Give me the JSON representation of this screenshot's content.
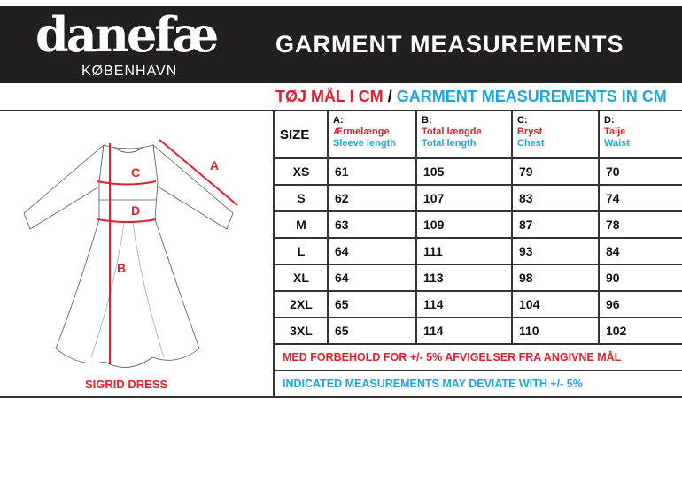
{
  "brand": {
    "logo": "danefæ",
    "city": "KØBENHAVN"
  },
  "header": {
    "title": "GARMENT MEASUREMENTS"
  },
  "subtitle": {
    "danish": "TØJ MÅL I CM",
    "sep": "/",
    "english": "GARMENT MEASUREMENTS IN CM"
  },
  "garment": {
    "name": "SIGRID DRESS",
    "markers": [
      "A",
      "B",
      "C",
      "D"
    ],
    "accent": "#e0202e"
  },
  "table": {
    "size_header": "SIZE",
    "columns": [
      {
        "key": "A:",
        "da": "Ærmelænge",
        "en": "Sleeve length"
      },
      {
        "key": "B:",
        "da": "Total længde",
        "en": "Total length"
      },
      {
        "key": "C:",
        "da": "Bryst",
        "en": "Chest"
      },
      {
        "key": "D:",
        "da": "Talje",
        "en": "Waist"
      }
    ],
    "rows": [
      {
        "size": "XS",
        "v": [
          "61",
          "105",
          "79",
          "70"
        ]
      },
      {
        "size": "S",
        "v": [
          "62",
          "107",
          "83",
          "74"
        ]
      },
      {
        "size": "M",
        "v": [
          "63",
          "109",
          "87",
          "78"
        ]
      },
      {
        "size": "L",
        "v": [
          "64",
          "111",
          "93",
          "84"
        ]
      },
      {
        "size": "XL",
        "v": [
          "64",
          "113",
          "98",
          "90"
        ]
      },
      {
        "size": "2XL",
        "v": [
          "65",
          "114",
          "104",
          "96"
        ]
      },
      {
        "size": "3XL",
        "v": [
          "65",
          "114",
          "110",
          "102"
        ]
      }
    ],
    "note_da": "MED FORBEHOLD FOR +/- 5% AFVIGELSER FRA ANGIVNE MÅL",
    "note_en": "INDICATED MEASUREMENTS MAY DEVIATE WITH +/- 5%"
  }
}
